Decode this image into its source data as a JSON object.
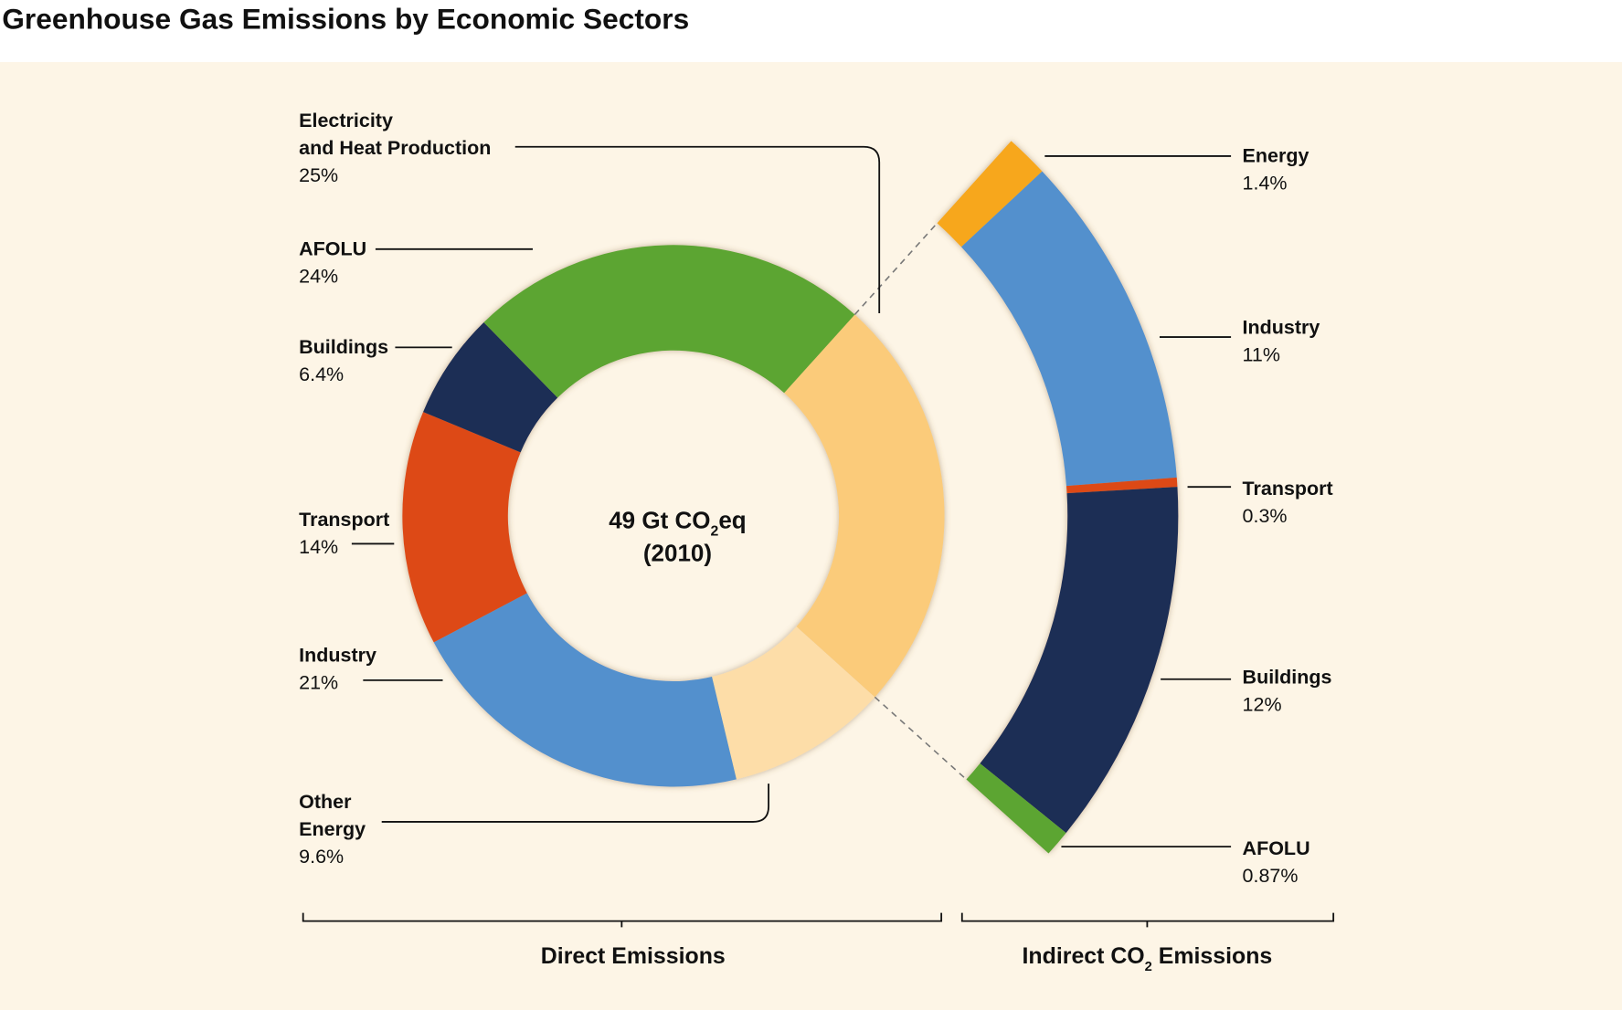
{
  "chart_data": {
    "type": "donut",
    "title": "Greenhouse Gas Emissions by Economic Sectors",
    "center_label": {
      "prefix": "49 Gt CO",
      "sub": "2",
      "suffix": "eq",
      "line2": "(2010)"
    },
    "background_color": "#FDF5E6",
    "direct": {
      "group_label": "Direct Emissions",
      "segments": [
        {
          "name": "Electricity and Heat Production",
          "label_lines": [
            "Electricity",
            "and Heat Production"
          ],
          "value": 25,
          "value_label": "25%",
          "color": "#FBCB7A"
        },
        {
          "name": "Other Energy",
          "label_lines": [
            "Other",
            "Energy"
          ],
          "value": 9.6,
          "value_label": "9.6%",
          "color": "#FDDDA8"
        },
        {
          "name": "Industry",
          "label_lines": [
            "Industry"
          ],
          "value": 21,
          "value_label": "21%",
          "color": "#5290CD"
        },
        {
          "name": "Transport",
          "label_lines": [
            "Transport"
          ],
          "value": 14,
          "value_label": "14%",
          "color": "#DD4A15"
        },
        {
          "name": "Buildings",
          "label_lines": [
            "Buildings"
          ],
          "value": 6.4,
          "value_label": "6.4%",
          "color": "#1F2D55"
        },
        {
          "name": "AFOLU",
          "label_lines": [
            "AFOLU"
          ],
          "value": 24,
          "value_label": "24%",
          "color": "#5BA533"
        }
      ]
    },
    "indirect": {
      "group_label": {
        "prefix": "Indirect CO",
        "sub": "2",
        "suffix": " Emissions"
      },
      "segments": [
        {
          "name": "Energy",
          "value": 1.4,
          "value_label": "1.4%",
          "color": "#F7A71B"
        },
        {
          "name": "Industry",
          "value": 11,
          "value_label": "11%",
          "color": "#5290CD"
        },
        {
          "name": "Transport",
          "value": 0.3,
          "value_label": "0.3%",
          "color": "#DD4A15"
        },
        {
          "name": "Buildings",
          "value": 12,
          "value_label": "12%",
          "color": "#1F2D55"
        },
        {
          "name": "AFOLU",
          "value": 0.87,
          "value_label": "0.87%",
          "color": "#5BA533"
        }
      ]
    }
  }
}
